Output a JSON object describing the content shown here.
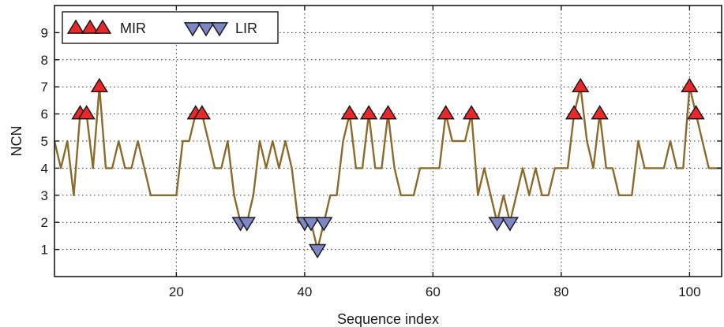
{
  "chart_data": {
    "type": "line",
    "title": "",
    "xlabel": "Sequence index",
    "ylabel": "NCN",
    "xlim": [
      1,
      105
    ],
    "ylim": [
      0,
      10
    ],
    "xticks": [
      20,
      40,
      60,
      80,
      100
    ],
    "yticks": [
      1,
      2,
      3,
      4,
      5,
      6,
      7,
      8,
      9
    ],
    "grid": true,
    "legend_position": "top-left",
    "colors": {
      "line": "#8b6a2b",
      "mir_fill": "#e8282b",
      "lir_fill": "#7f86c4",
      "marker_edge": "#1a1a1a"
    },
    "series": [
      {
        "x": [
          1,
          2,
          3,
          4,
          5,
          6,
          7,
          8,
          9,
          10,
          11,
          12,
          13,
          14,
          15,
          16,
          17,
          18,
          19,
          20,
          21,
          22,
          23,
          24,
          25,
          26,
          27,
          28,
          29,
          30,
          31,
          32,
          33,
          34,
          35,
          36,
          37,
          38,
          39,
          40,
          41,
          42,
          43,
          44,
          45,
          46,
          47,
          48,
          49,
          50,
          51,
          52,
          53,
          54,
          55,
          56,
          57,
          58,
          59,
          60,
          61,
          62,
          63,
          64,
          65,
          66,
          67,
          68,
          69,
          70,
          71,
          72,
          73,
          74,
          75,
          76,
          77,
          78,
          79,
          80,
          81,
          82,
          83,
          84,
          85,
          86,
          87,
          88,
          89,
          90,
          91,
          92,
          93,
          94,
          95,
          96,
          97,
          98,
          99,
          100,
          101,
          102,
          103,
          104,
          105
        ],
        "values": [
          5,
          4,
          5,
          3,
          6,
          6,
          4,
          7,
          4,
          4,
          5,
          4,
          4,
          5,
          4,
          3,
          3,
          3,
          3,
          3,
          5,
          5,
          6,
          6,
          5,
          4,
          4,
          5,
          3,
          2,
          2,
          3,
          5,
          4,
          5,
          4,
          5,
          4,
          2,
          2,
          2,
          1,
          2,
          3,
          3,
          5,
          6,
          4,
          4,
          6,
          4,
          4,
          6,
          4,
          3,
          3,
          3,
          4,
          4,
          4,
          4,
          6,
          5,
          5,
          5,
          6,
          3,
          4,
          3,
          2,
          3,
          2,
          3,
          4,
          3,
          4,
          3,
          3,
          4,
          4,
          4,
          6,
          7,
          5,
          4,
          6,
          4,
          4,
          3,
          3,
          3,
          5,
          4,
          4,
          4,
          4,
          5,
          4,
          4,
          7,
          6,
          5,
          4,
          4,
          4
        ]
      },
      {
        "name": "MIR",
        "marker": "triangle-up",
        "x": [
          5,
          6,
          8,
          23,
          24,
          47,
          50,
          53,
          62,
          66,
          82,
          83,
          86,
          100,
          101
        ],
        "values": [
          6,
          6,
          7,
          6,
          6,
          6,
          6,
          6,
          6,
          6,
          6,
          7,
          6,
          7,
          6
        ]
      },
      {
        "name": "LIR",
        "marker": "triangle-down",
        "x": [
          30,
          31,
          40,
          41,
          42,
          43,
          70,
          72
        ],
        "values": [
          2,
          2,
          2,
          2,
          1,
          2,
          2,
          2
        ]
      }
    ]
  }
}
